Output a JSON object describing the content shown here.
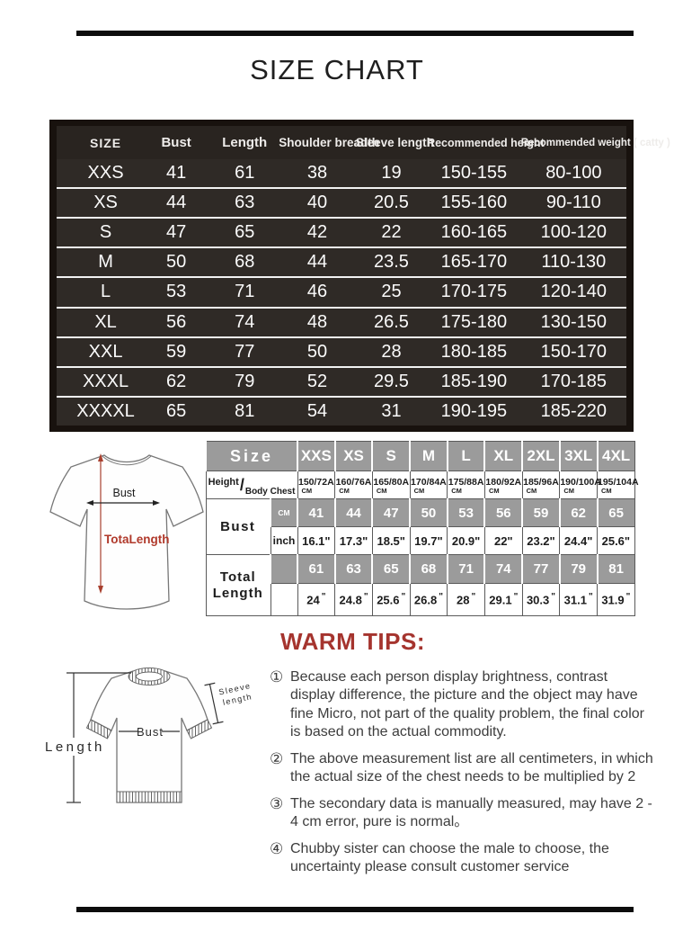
{
  "title": "SIZE CHART",
  "size_table": {
    "headers": [
      "SIZE",
      "Bust",
      "Length",
      "Shoulder breadth",
      "Sleeve length",
      "Recommended height",
      "Recommended weight ( catty )"
    ],
    "rows": [
      [
        "XXS",
        "41",
        "61",
        "38",
        "19",
        "150-155",
        "80-100"
      ],
      [
        "XS",
        "44",
        "63",
        "40",
        "20.5",
        "155-160",
        "90-110"
      ],
      [
        "S",
        "47",
        "65",
        "42",
        "22",
        "160-165",
        "100-120"
      ],
      [
        "M",
        "50",
        "68",
        "44",
        "23.5",
        "165-170",
        "110-130"
      ],
      [
        "L",
        "53",
        "71",
        "46",
        "25",
        "170-175",
        "120-140"
      ],
      [
        "XL",
        "56",
        "74",
        "48",
        "26.5",
        "175-180",
        "130-150"
      ],
      [
        "XXL",
        "59",
        "77",
        "50",
        "28",
        "180-185",
        "150-170"
      ],
      [
        "XXXL",
        "62",
        "79",
        "52",
        "29.5",
        "185-190",
        "170-185"
      ],
      [
        "XXXXL",
        "65",
        "81",
        "54",
        "31",
        "190-195",
        "185-220"
      ]
    ]
  },
  "detail_table": {
    "size_label": "Size",
    "sizes": [
      "XXS",
      "XS",
      "S",
      "M",
      "L",
      "XL",
      "2XL",
      "3XL",
      "4XL"
    ],
    "height_label": "Height",
    "height_slash": "/",
    "body_chest_label": "Body Chest",
    "height_row": [
      "150/72A",
      "160/76A",
      "165/80A",
      "170/84A",
      "175/88A",
      "180/92A",
      "185/96A",
      "190/100A",
      "195/104A"
    ],
    "height_unit": "CM",
    "bust_label": "Bust",
    "cm_unit": "CM",
    "inch_unit": "inch",
    "bust_cm": [
      "41",
      "44",
      "47",
      "50",
      "53",
      "56",
      "59",
      "62",
      "65"
    ],
    "bust_inch": [
      "16.1\"",
      "17.3\"",
      "18.5\"",
      "19.7\"",
      "20.9\"",
      "22\"",
      "23.2\"",
      "24.4\"",
      "25.6\""
    ],
    "total_label_line1": "Total",
    "total_label_line2": "Length",
    "total_cm": [
      "61",
      "63",
      "65",
      "68",
      "71",
      "74",
      "77",
      "79",
      "81"
    ],
    "total_inch": [
      "24",
      "24.8",
      "25.6",
      "26.8",
      "28",
      "29.1",
      "30.3",
      "31.1",
      "31.9"
    ],
    "inch_mark": "\""
  },
  "diagram_top": {
    "bust": "Bust",
    "total_length": "TotaLength"
  },
  "diagram_bottom": {
    "length": "Length",
    "bust": "Bust",
    "sleeve_line1": "Sleeve",
    "sleeve_line2": "length"
  },
  "warm_tips": {
    "title": "WARM TIPS:",
    "items": [
      {
        "num": "①",
        "text": "Because each person display brightness, contrast display difference, the picture and the object may have fine Micro, not part of the quality problem, the final color is based on the actual commodity."
      },
      {
        "num": "②",
        "text": "The above measurement list are all centimeters, in which the actual size of the chest needs to be multiplied by 2"
      },
      {
        "num": "③",
        "text": "The secondary data is manually measured, may have 2 - 4 cm error, pure is normal。"
      },
      {
        "num": "④",
        "text": "Chubby sister can choose the male to choose, the uncertainty please consult customer service"
      }
    ]
  },
  "colors": {
    "accent_red": "#a5342e",
    "diagram_red": "#b0392b",
    "table_dark": "#2f2a26",
    "table_gray": "#9b9b9b"
  }
}
